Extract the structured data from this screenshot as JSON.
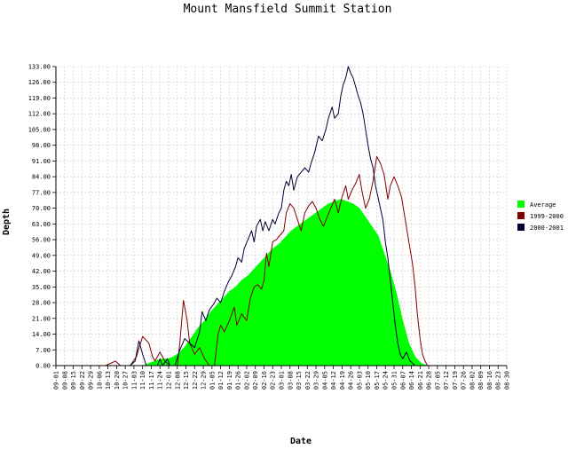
{
  "chart_data": {
    "type": "area",
    "title": "Mount Mansfield Summit Station",
    "xlabel": "Date",
    "ylabel": "Depth",
    "ylim": [
      0,
      133
    ],
    "y_ticks": [
      "0.00",
      "7.00",
      "14.00",
      "21.00",
      "28.00",
      "35.00",
      "42.00",
      "49.00",
      "56.00",
      "63.00",
      "70.00",
      "77.00",
      "84.00",
      "91.00",
      "98.00",
      "105.00",
      "112.00",
      "119.00",
      "126.00",
      "133.00"
    ],
    "x_ticks": [
      "09-01",
      "09-08",
      "09-15",
      "09-22",
      "09-29",
      "10-06",
      "10-13",
      "10-20",
      "10-27",
      "11-03",
      "11-10",
      "11-17",
      "11-24",
      "12-01",
      "12-08",
      "12-15",
      "12-22",
      "12-29",
      "01-05",
      "01-12",
      "01-19",
      "01-26",
      "02-02",
      "02-09",
      "02-16",
      "02-23",
      "03-01",
      "03-08",
      "03-15",
      "03-22",
      "03-29",
      "04-05",
      "04-12",
      "04-19",
      "04-26",
      "05-03",
      "05-10",
      "05-17",
      "05-24",
      "05-31",
      "06-07",
      "06-14",
      "06-21",
      "06-28",
      "07-05",
      "07-12",
      "07-19",
      "07-26",
      "08-02",
      "08-09",
      "08-16",
      "08-23",
      "08-30"
    ],
    "grid": true,
    "legend_position": "right",
    "series": [
      {
        "name": "Average",
        "color": "#00ff00",
        "style": "area",
        "points": [
          [
            0,
            0
          ],
          [
            70,
            0
          ],
          [
            75,
            1
          ],
          [
            80,
            2
          ],
          [
            85,
            3
          ],
          [
            90,
            3
          ],
          [
            95,
            4
          ],
          [
            100,
            6
          ],
          [
            105,
            9
          ],
          [
            110,
            13
          ],
          [
            115,
            17
          ],
          [
            120,
            20
          ],
          [
            125,
            24
          ],
          [
            130,
            27
          ],
          [
            135,
            30
          ],
          [
            140,
            33
          ],
          [
            145,
            35
          ],
          [
            150,
            38
          ],
          [
            155,
            40
          ],
          [
            160,
            43
          ],
          [
            165,
            46
          ],
          [
            170,
            49
          ],
          [
            175,
            52
          ],
          [
            180,
            54
          ],
          [
            185,
            57
          ],
          [
            190,
            60
          ],
          [
            195,
            62
          ],
          [
            200,
            64
          ],
          [
            205,
            66
          ],
          [
            210,
            68
          ],
          [
            215,
            70
          ],
          [
            220,
            72
          ],
          [
            225,
            73
          ],
          [
            230,
            74
          ],
          [
            235,
            73
          ],
          [
            240,
            72
          ],
          [
            245,
            70
          ],
          [
            250,
            66
          ],
          [
            255,
            62
          ],
          [
            260,
            58
          ],
          [
            265,
            50
          ],
          [
            270,
            42
          ],
          [
            275,
            32
          ],
          [
            280,
            20
          ],
          [
            285,
            10
          ],
          [
            290,
            4
          ],
          [
            295,
            1
          ],
          [
            300,
            0
          ],
          [
            364,
            0
          ]
        ]
      },
      {
        "name": "1999-2000",
        "color": "#800000",
        "style": "line",
        "points": [
          [
            0,
            0
          ],
          [
            40,
            0
          ],
          [
            48,
            2
          ],
          [
            52,
            0
          ],
          [
            60,
            0
          ],
          [
            65,
            4
          ],
          [
            70,
            13
          ],
          [
            75,
            10
          ],
          [
            78,
            4
          ],
          [
            80,
            2
          ],
          [
            84,
            6
          ],
          [
            88,
            2
          ],
          [
            92,
            0
          ],
          [
            98,
            0
          ],
          [
            100,
            10
          ],
          [
            103,
            29
          ],
          [
            106,
            20
          ],
          [
            108,
            10
          ],
          [
            112,
            5
          ],
          [
            116,
            8
          ],
          [
            120,
            3
          ],
          [
            124,
            0
          ],
          [
            128,
            0
          ],
          [
            131,
            14
          ],
          [
            133,
            18
          ],
          [
            136,
            15
          ],
          [
            140,
            20
          ],
          [
            144,
            26
          ],
          [
            146,
            18
          ],
          [
            150,
            23
          ],
          [
            154,
            20
          ],
          [
            157,
            30
          ],
          [
            160,
            35
          ],
          [
            163,
            36
          ],
          [
            166,
            34
          ],
          [
            168,
            38
          ],
          [
            170,
            50
          ],
          [
            172,
            44
          ],
          [
            175,
            55
          ],
          [
            178,
            56
          ],
          [
            181,
            58
          ],
          [
            184,
            60
          ],
          [
            186,
            68
          ],
          [
            189,
            72
          ],
          [
            192,
            70
          ],
          [
            195,
            65
          ],
          [
            198,
            60
          ],
          [
            201,
            68
          ],
          [
            204,
            71
          ],
          [
            207,
            73
          ],
          [
            210,
            70
          ],
          [
            213,
            65
          ],
          [
            216,
            62
          ],
          [
            219,
            66
          ],
          [
            222,
            70
          ],
          [
            225,
            74
          ],
          [
            228,
            68
          ],
          [
            231,
            75
          ],
          [
            234,
            80
          ],
          [
            236,
            74
          ],
          [
            239,
            78
          ],
          [
            242,
            81
          ],
          [
            245,
            85
          ],
          [
            247,
            78
          ],
          [
            250,
            70
          ],
          [
            253,
            74
          ],
          [
            256,
            82
          ],
          [
            259,
            93
          ],
          [
            262,
            90
          ],
          [
            265,
            85
          ],
          [
            268,
            74
          ],
          [
            270,
            80
          ],
          [
            273,
            84
          ],
          [
            276,
            80
          ],
          [
            279,
            75
          ],
          [
            282,
            65
          ],
          [
            285,
            55
          ],
          [
            288,
            45
          ],
          [
            290,
            35
          ],
          [
            292,
            22
          ],
          [
            294,
            12
          ],
          [
            296,
            5
          ],
          [
            298,
            2
          ],
          [
            300,
            0
          ],
          [
            364,
            0
          ]
        ]
      },
      {
        "name": "2000-2001",
        "color": "#000033",
        "style": "line",
        "points": [
          [
            0,
            0
          ],
          [
            60,
            0
          ],
          [
            64,
            2
          ],
          [
            67,
            11
          ],
          [
            70,
            5
          ],
          [
            73,
            0
          ],
          [
            82,
            0
          ],
          [
            84,
            3
          ],
          [
            86,
            0
          ],
          [
            90,
            3
          ],
          [
            92,
            0
          ],
          [
            96,
            0
          ],
          [
            100,
            7
          ],
          [
            104,
            12
          ],
          [
            108,
            10
          ],
          [
            112,
            8
          ],
          [
            116,
            15
          ],
          [
            118,
            24
          ],
          [
            121,
            20
          ],
          [
            124,
            25
          ],
          [
            127,
            27
          ],
          [
            130,
            30
          ],
          [
            133,
            28
          ],
          [
            136,
            33
          ],
          [
            139,
            37
          ],
          [
            142,
            40
          ],
          [
            145,
            44
          ],
          [
            147,
            48
          ],
          [
            150,
            46
          ],
          [
            152,
            52
          ],
          [
            155,
            56
          ],
          [
            158,
            60
          ],
          [
            160,
            55
          ],
          [
            162,
            62
          ],
          [
            165,
            65
          ],
          [
            167,
            60
          ],
          [
            169,
            64
          ],
          [
            172,
            60
          ],
          [
            175,
            65
          ],
          [
            177,
            63
          ],
          [
            180,
            68
          ],
          [
            182,
            70
          ],
          [
            184,
            78
          ],
          [
            186,
            82
          ],
          [
            188,
            80
          ],
          [
            190,
            85
          ],
          [
            192,
            78
          ],
          [
            195,
            84
          ],
          [
            198,
            86
          ],
          [
            201,
            88
          ],
          [
            204,
            86
          ],
          [
            206,
            90
          ],
          [
            209,
            95
          ],
          [
            212,
            102
          ],
          [
            215,
            100
          ],
          [
            218,
            105
          ],
          [
            220,
            110
          ],
          [
            223,
            115
          ],
          [
            225,
            110
          ],
          [
            228,
            112
          ],
          [
            230,
            120
          ],
          [
            232,
            125
          ],
          [
            234,
            128
          ],
          [
            236,
            133
          ],
          [
            238,
            130
          ],
          [
            240,
            128
          ],
          [
            242,
            124
          ],
          [
            244,
            120
          ],
          [
            246,
            117
          ],
          [
            248,
            112
          ],
          [
            250,
            105
          ],
          [
            252,
            98
          ],
          [
            254,
            92
          ],
          [
            256,
            88
          ],
          [
            258,
            80
          ],
          [
            260,
            75
          ],
          [
            262,
            70
          ],
          [
            264,
            65
          ],
          [
            266,
            55
          ],
          [
            268,
            48
          ],
          [
            270,
            38
          ],
          [
            272,
            28
          ],
          [
            274,
            18
          ],
          [
            276,
            10
          ],
          [
            278,
            5
          ],
          [
            280,
            3
          ],
          [
            283,
            6
          ],
          [
            286,
            2
          ],
          [
            290,
            0
          ],
          [
            364,
            0
          ]
        ]
      }
    ]
  }
}
